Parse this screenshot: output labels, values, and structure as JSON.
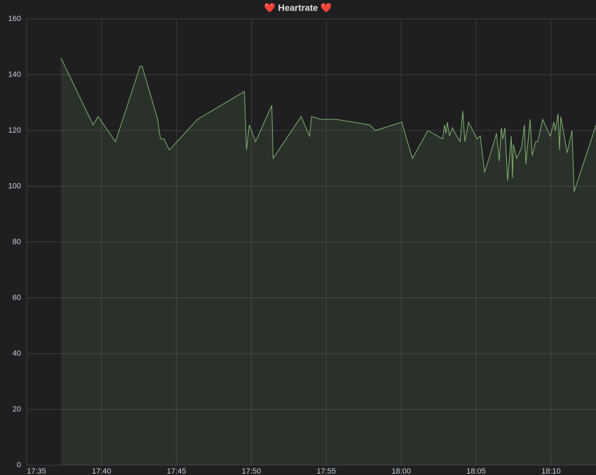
{
  "chart_data": {
    "type": "area",
    "title": "❤️ Heartrate ❤️",
    "x": [
      1057.29,
      1059.44,
      1059.77,
      1060.93,
      1062.57,
      1062.71,
      1063.74,
      1063.93,
      1064.16,
      1064.53,
      1066.4,
      1069.53,
      1069.67,
      1069.86,
      1070.28,
      1071.36,
      1071.45,
      1073.32,
      1073.88,
      1074.02,
      1074.63,
      1075.65,
      1077.9,
      1078.27,
      1080.05,
      1080.14,
      1080.75,
      1081.78,
      1082.76,
      1082.9,
      1082.99,
      1083.08,
      1083.22,
      1083.41,
      1083.6,
      1083.93,
      1084.11,
      1084.25,
      1084.49,
      1085.05,
      1085.28,
      1085.56,
      1086.03,
      1086.36,
      1086.54,
      1086.68,
      1086.78,
      1086.92,
      1087.1,
      1087.34,
      1087.43,
      1087.48,
      1087.71,
      1088.04,
      1088.22,
      1088.32,
      1088.6,
      1088.74,
      1088.97,
      1089.11,
      1089.44,
      1089.95,
      1090.19,
      1090.28,
      1090.47,
      1090.56,
      1090.65,
      1091.07,
      1091.4,
      1091.54,
      1093.0
    ],
    "series": [
      {
        "name": "Heartrate",
        "color": "#7eb26d",
        "values": [
          146,
          122,
          125,
          116,
          143,
          143,
          124,
          117,
          117,
          113,
          124,
          134,
          113,
          122,
          116,
          129,
          110,
          125,
          118,
          125,
          124,
          124,
          122,
          120,
          123,
          121,
          110,
          120,
          117,
          122,
          119,
          123,
          118,
          121,
          119,
          116,
          127,
          116,
          123,
          117,
          118,
          105,
          113,
          119,
          109,
          121,
          117,
          121,
          102,
          118,
          103,
          115,
          110,
          114,
          122,
          108,
          124,
          111,
          116,
          116,
          124,
          118,
          123,
          120,
          126,
          113,
          125,
          112,
          120,
          98,
          122
        ]
      }
    ],
    "xlim": [
      1055,
      1093
    ],
    "xticks": [
      {
        "value": 1055,
        "label": "17:35"
      },
      {
        "value": 1060,
        "label": "17:40"
      },
      {
        "value": 1065,
        "label": "17:45"
      },
      {
        "value": 1070,
        "label": "17:50"
      },
      {
        "value": 1075,
        "label": "17:55"
      },
      {
        "value": 1080,
        "label": "18:00"
      },
      {
        "value": 1085,
        "label": "18:05"
      },
      {
        "value": 1090,
        "label": "18:10"
      }
    ],
    "ylim": [
      0,
      160
    ],
    "yticks": [
      0,
      20,
      40,
      60,
      80,
      100,
      120,
      140,
      160
    ],
    "grid": true
  }
}
